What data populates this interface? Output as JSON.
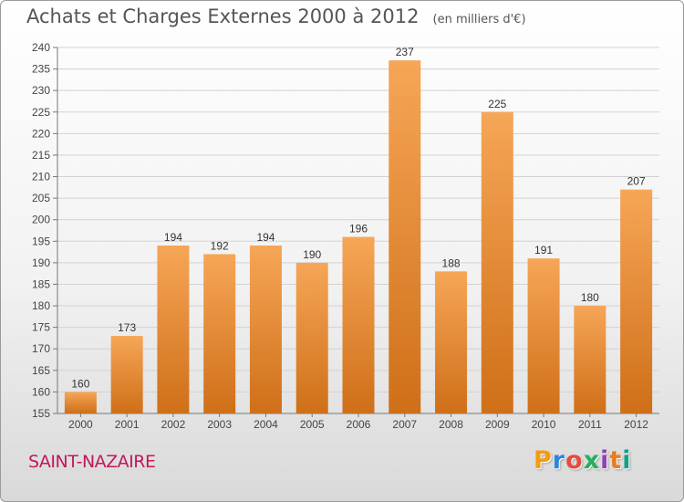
{
  "title": "Achats et Charges Externes 2000 à 2012",
  "unit_note": "(en milliers d'€)",
  "location": "SAINT-NAZAIRE",
  "brand": {
    "letters": [
      "P",
      "r",
      "o",
      "x",
      "i",
      "t",
      "i"
    ],
    "colors": [
      "#f39c12",
      "#2e86de",
      "#e74c3c",
      "#27ae60",
      "#8e44ad",
      "#e67e22",
      "#16a085"
    ]
  },
  "colors": {
    "bar_top": "#f6a657",
    "bar_bottom": "#cf6f18",
    "city_text": "#c2185b"
  },
  "chart_data": {
    "type": "bar",
    "title": "Achats et Charges Externes 2000 à 2012",
    "categories": [
      "2000",
      "2001",
      "2002",
      "2003",
      "2004",
      "2005",
      "2006",
      "2007",
      "2008",
      "2009",
      "2010",
      "2011",
      "2012"
    ],
    "values": [
      160,
      173,
      194,
      192,
      194,
      190,
      196,
      237,
      188,
      225,
      191,
      180,
      207
    ],
    "ylim": [
      155,
      240
    ],
    "yticks": [
      155,
      160,
      165,
      170,
      175,
      180,
      185,
      190,
      195,
      200,
      205,
      210,
      215,
      220,
      225,
      230,
      235,
      240
    ],
    "grid": true,
    "data_labels": true
  }
}
